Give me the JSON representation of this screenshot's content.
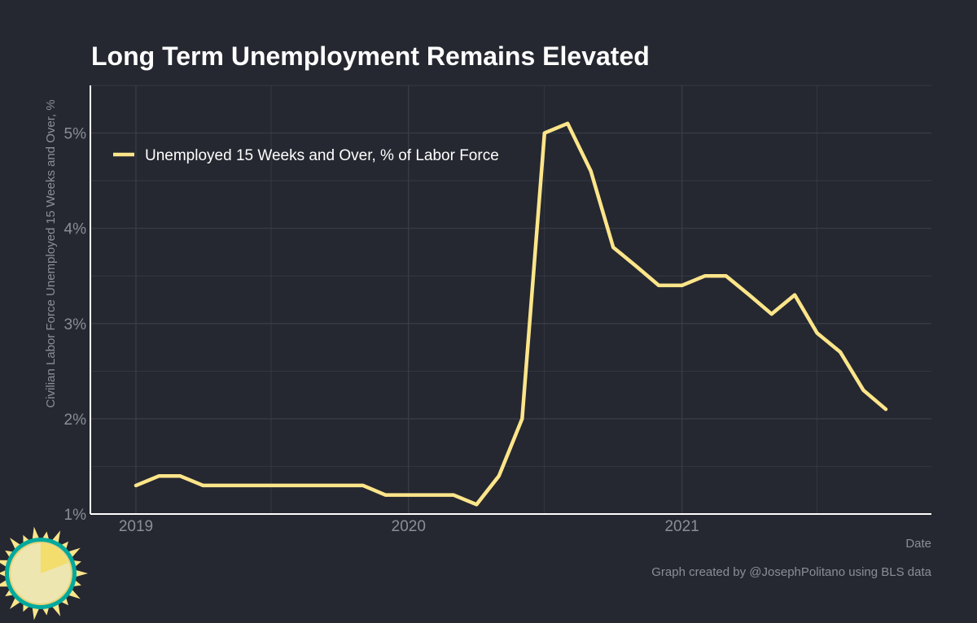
{
  "colors": {
    "background": "#252830",
    "line": "#fde58a",
    "grid": "#3a3e47",
    "axis": "#ffffff",
    "text_muted": "#8a8e96",
    "title": "#ffffff",
    "logo_ring": "#00a99d",
    "logo_sun": "#fde58a"
  },
  "logo": {
    "icon": "sun-logo-icon"
  },
  "chart_data": {
    "type": "line",
    "title": "Long Term Unemployment Remains Elevated",
    "xlabel": "Date",
    "ylabel": "Civilian Labor Force Unemployed 15 Weeks and Over, %",
    "caption": "Graph created by @JosephPolitano using BLS data",
    "legend_position": "top-left",
    "grid": true,
    "x_ticks": [
      {
        "value": "2019-01-01",
        "label": "2019"
      },
      {
        "value": "2020-01-01",
        "label": "2020"
      },
      {
        "value": "2021-01-01",
        "label": "2021"
      }
    ],
    "y_ticks": [
      {
        "value": 1,
        "label": "1%"
      },
      {
        "value": 2,
        "label": "2%"
      },
      {
        "value": 3,
        "label": "3%"
      },
      {
        "value": 4,
        "label": "4%"
      },
      {
        "value": 5,
        "label": "5%"
      }
    ],
    "xlim": [
      "2018-11-01",
      "2021-12-01"
    ],
    "ylim": [
      1,
      5.5
    ],
    "x": [
      "2019-01-01",
      "2019-02-01",
      "2019-03-01",
      "2019-04-01",
      "2019-05-01",
      "2019-06-01",
      "2019-07-01",
      "2019-08-01",
      "2019-09-01",
      "2019-10-01",
      "2019-11-01",
      "2019-12-01",
      "2020-01-01",
      "2020-02-01",
      "2020-03-01",
      "2020-04-01",
      "2020-05-01",
      "2020-06-01",
      "2020-07-01",
      "2020-08-01",
      "2020-09-01",
      "2020-10-01",
      "2020-11-01",
      "2020-12-01",
      "2021-01-01",
      "2021-02-01",
      "2021-03-01",
      "2021-04-01",
      "2021-05-01",
      "2021-06-01",
      "2021-07-01",
      "2021-08-01",
      "2021-09-01",
      "2021-10-01"
    ],
    "series": [
      {
        "name": "Unemployed 15 Weeks and Over, % of Labor Force",
        "values": [
          1.3,
          1.4,
          1.4,
          1.3,
          1.3,
          1.3,
          1.3,
          1.3,
          1.3,
          1.3,
          1.3,
          1.2,
          1.2,
          1.2,
          1.2,
          1.1,
          1.4,
          2.0,
          5.0,
          5.1,
          4.6,
          3.8,
          3.6,
          3.4,
          3.4,
          3.5,
          3.5,
          3.3,
          3.1,
          3.3,
          2.9,
          2.7,
          2.3,
          2.1
        ]
      }
    ]
  }
}
